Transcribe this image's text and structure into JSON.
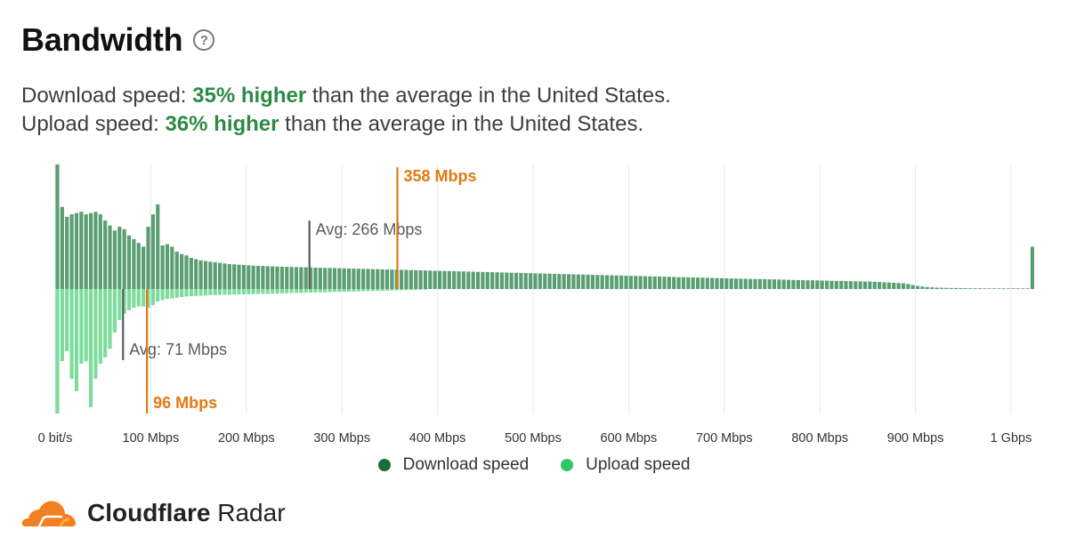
{
  "header": {
    "title": "Bandwidth",
    "help_icon": "?"
  },
  "summary": {
    "download": {
      "prefix": "Download speed:",
      "pct": "35% higher",
      "suffix": "than the average in the United States."
    },
    "upload": {
      "prefix": "Upload speed:",
      "pct": "36% higher",
      "suffix": "than the average in the United States."
    }
  },
  "colors": {
    "download": "#5a9e72",
    "upload": "#7ddc9c",
    "avg_marker": "#5b5b5b",
    "median_marker": "#e07a10",
    "highlight": "#2c8a44"
  },
  "legend": {
    "download": {
      "label": "Download speed",
      "color": "#1e6b3a"
    },
    "upload": {
      "label": "Upload speed",
      "color": "#34c46a"
    }
  },
  "brand": {
    "name_bold": "Cloudflare",
    "name_rest": "Radar",
    "logo_icon": "cloudflare-cloud-icon"
  },
  "chart_data": {
    "type": "bar",
    "x_unit": "Mbps",
    "xlim": [
      0,
      1000
    ],
    "bin_width_mbps": 5,
    "x_ticks": [
      {
        "value": 0,
        "label": "0 bit/s"
      },
      {
        "value": 100,
        "label": "100 Mbps"
      },
      {
        "value": 200,
        "label": "200 Mbps"
      },
      {
        "value": 300,
        "label": "300 Mbps"
      },
      {
        "value": 400,
        "label": "400 Mbps"
      },
      {
        "value": 500,
        "label": "500 Mbps"
      },
      {
        "value": 600,
        "label": "600 Mbps"
      },
      {
        "value": 700,
        "label": "700 Mbps"
      },
      {
        "value": 800,
        "label": "800 Mbps"
      },
      {
        "value": 900,
        "label": "900 Mbps"
      },
      {
        "value": 1000,
        "label": "1 Gbps"
      }
    ],
    "grid": true,
    "series": [
      {
        "name": "Download speed",
        "direction": "up",
        "values": [
          1.0,
          0.66,
          0.58,
          0.6,
          0.61,
          0.62,
          0.6,
          0.61,
          0.62,
          0.6,
          0.55,
          0.51,
          0.47,
          0.5,
          0.48,
          0.43,
          0.4,
          0.37,
          0.34,
          0.5,
          0.6,
          0.68,
          0.35,
          0.36,
          0.34,
          0.3,
          0.28,
          0.27,
          0.25,
          0.24,
          0.23,
          0.225,
          0.22,
          0.215,
          0.21,
          0.205,
          0.2,
          0.198,
          0.195,
          0.193,
          0.19,
          0.188,
          0.186,
          0.185,
          0.183,
          0.182,
          0.18,
          0.179,
          0.178,
          0.177,
          0.176,
          0.175,
          0.174,
          0.173,
          0.172,
          0.171,
          0.17,
          0.169,
          0.168,
          0.167,
          0.166,
          0.165,
          0.164,
          0.163,
          0.162,
          0.161,
          0.16,
          0.159,
          0.158,
          0.157,
          0.156,
          0.155,
          0.154,
          0.153,
          0.152,
          0.151,
          0.15,
          0.149,
          0.148,
          0.147,
          0.146,
          0.145,
          0.144,
          0.143,
          0.142,
          0.141,
          0.14,
          0.139,
          0.138,
          0.137,
          0.136,
          0.135,
          0.134,
          0.133,
          0.132,
          0.131,
          0.13,
          0.129,
          0.128,
          0.127,
          0.126,
          0.125,
          0.124,
          0.123,
          0.122,
          0.121,
          0.12,
          0.119,
          0.118,
          0.117,
          0.116,
          0.115,
          0.114,
          0.113,
          0.112,
          0.111,
          0.11,
          0.109,
          0.108,
          0.107,
          0.106,
          0.105,
          0.104,
          0.103,
          0.102,
          0.101,
          0.1,
          0.099,
          0.098,
          0.097,
          0.096,
          0.095,
          0.094,
          0.093,
          0.092,
          0.091,
          0.09,
          0.089,
          0.088,
          0.087,
          0.086,
          0.085,
          0.084,
          0.083,
          0.082,
          0.081,
          0.08,
          0.08,
          0.079,
          0.078,
          0.077,
          0.076,
          0.075,
          0.074,
          0.073,
          0.072,
          0.071,
          0.07,
          0.07,
          0.069,
          0.068,
          0.067,
          0.066,
          0.065,
          0.065,
          0.064,
          0.063,
          0.062,
          0.061,
          0.06,
          0.06,
          0.058,
          0.056,
          0.054,
          0.052,
          0.05,
          0.048,
          0.046,
          0.04,
          0.032,
          0.025,
          0.02,
          0.016,
          0.013,
          0.011,
          0.01,
          0.009,
          0.008,
          0.008,
          0.007,
          0.007,
          0.006,
          0.006,
          0.006,
          0.005,
          0.005,
          0.005,
          0.005,
          0.005,
          0.005,
          0.005,
          0.005,
          0.005,
          0.005,
          0.34
        ]
      },
      {
        "name": "Upload speed",
        "direction": "down",
        "values": [
          1.0,
          0.58,
          0.5,
          0.72,
          0.82,
          0.6,
          0.58,
          0.95,
          0.72,
          0.6,
          0.55,
          0.48,
          0.35,
          0.25,
          0.2,
          0.17,
          0.15,
          0.14,
          0.14,
          0.15,
          0.13,
          0.1,
          0.09,
          0.08,
          0.075,
          0.07,
          0.065,
          0.06,
          0.058,
          0.056,
          0.054,
          0.052,
          0.05,
          0.049,
          0.048,
          0.047,
          0.046,
          0.045,
          0.044,
          0.043,
          0.042,
          0.041,
          0.04,
          0.039,
          0.038,
          0.037,
          0.036,
          0.035,
          0.034,
          0.033,
          0.032,
          0.031,
          0.03,
          0.029,
          0.028,
          0.027,
          0.026,
          0.025,
          0.024,
          0.023,
          0.022,
          0.021,
          0.02,
          0.019,
          0.018,
          0.017,
          0.016,
          0.015,
          0.014,
          0.013,
          0.012,
          0.011,
          0.01,
          0.009,
          0.008,
          0.007,
          0.006,
          0.005
        ]
      }
    ],
    "markers": [
      {
        "series": "Download speed",
        "kind": "avg",
        "value": 266,
        "label": "Avg: 266 Mbps"
      },
      {
        "series": "Download speed",
        "kind": "median",
        "value": 358,
        "label": "358 Mbps"
      },
      {
        "series": "Upload speed",
        "kind": "avg",
        "value": 71,
        "label": "Avg: 71 Mbps"
      },
      {
        "series": "Upload speed",
        "kind": "median",
        "value": 96,
        "label": "96 Mbps"
      }
    ]
  }
}
